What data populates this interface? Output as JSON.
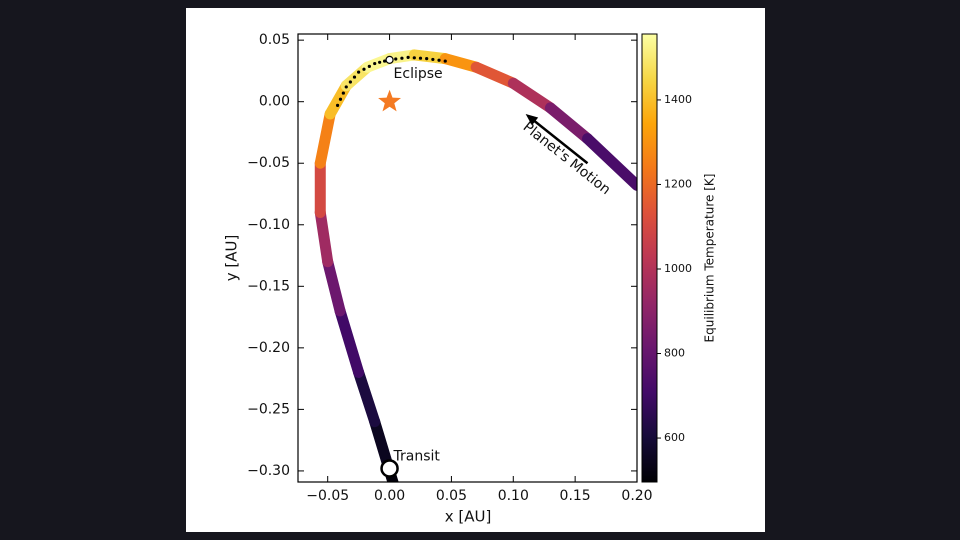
{
  "chart_data": {
    "type": "orbit",
    "xlabel": "x [AU]",
    "ylabel": "y [AU]",
    "colorbar_label": "Equilibrium Temperature [K]",
    "colormap": "inferno",
    "xlim": [
      -0.074,
      0.2
    ],
    "ylim": [
      -0.309,
      0.055
    ],
    "clim": [
      496,
      1556
    ],
    "xticks": [
      {
        "value": -0.05,
        "label": "−0.05"
      },
      {
        "value": 0,
        "label": "0.00"
      },
      {
        "value": 0.05,
        "label": "0.05"
      },
      {
        "value": 0.1,
        "label": "0.10"
      },
      {
        "value": 0.15,
        "label": "0.15"
      },
      {
        "value": 0.2,
        "label": "0.20"
      }
    ],
    "yticks": [
      {
        "value": 0.05,
        "label": "0.05"
      },
      {
        "value": 0,
        "label": "0.00"
      },
      {
        "value": -0.05,
        "label": "−0.05"
      },
      {
        "value": -0.1,
        "label": "−0.10"
      },
      {
        "value": -0.15,
        "label": "−0.15"
      },
      {
        "value": -0.2,
        "label": "−0.20"
      },
      {
        "value": -0.25,
        "label": "−0.25"
      },
      {
        "value": -0.3,
        "label": "−0.30"
      }
    ],
    "cticks": [
      600,
      800,
      1000,
      1200,
      1400
    ],
    "orbit": {
      "x": [
        0.003,
        0.0,
        -0.012,
        -0.025,
        -0.04,
        -0.05,
        -0.056,
        -0.056,
        -0.048,
        -0.035,
        -0.018,
        0.0,
        0.02,
        0.045,
        0.07,
        0.1,
        0.13,
        0.16,
        0.2
      ],
      "y": [
        -0.31,
        -0.3,
        -0.26,
        -0.22,
        -0.17,
        -0.13,
        -0.09,
        -0.05,
        -0.01,
        0.013,
        0.028,
        0.035,
        0.038,
        0.035,
        0.028,
        0.015,
        -0.005,
        -0.03,
        -0.068
      ],
      "temperature": [
        500,
        520,
        580,
        650,
        760,
        880,
        1020,
        1180,
        1340,
        1450,
        1520,
        1550,
        1500,
        1380,
        1230,
        1060,
        920,
        790,
        670
      ]
    },
    "eclipse_dots": {
      "x": [
        -0.042,
        -0.035,
        -0.025,
        -0.012,
        0.0,
        0.015,
        0.03,
        0.045
      ],
      "y": [
        -0.003,
        0.012,
        0.024,
        0.031,
        0.034,
        0.036,
        0.035,
        0.033
      ]
    },
    "star": {
      "x": 0,
      "y": 0,
      "color": "#f47a22"
    },
    "eclipse": {
      "label": "Eclipse",
      "x": 0,
      "y": 0.034
    },
    "transit": {
      "label": "Transit",
      "x": 0,
      "y": -0.298
    },
    "motion": {
      "label": "Planet's Motion",
      "from": [
        0.16,
        -0.05
      ],
      "to": [
        0.11,
        -0.01
      ]
    }
  }
}
